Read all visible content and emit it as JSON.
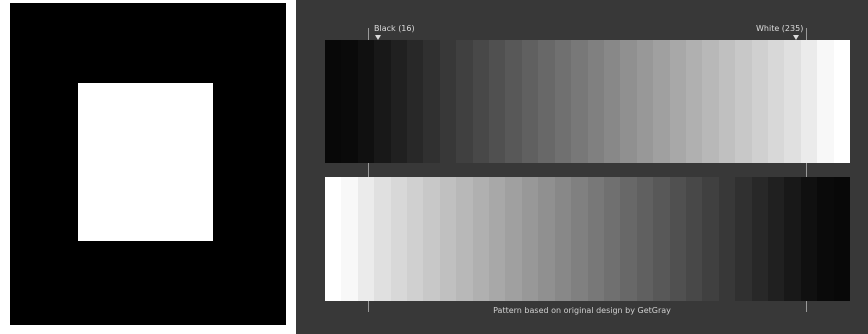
{
  "left_panel": {
    "background": "#000000",
    "square_color": "#ffffff"
  },
  "right_panel": {
    "background": "#383838",
    "markers": {
      "black_label": "Black (16)",
      "white_label": "White (235)"
    },
    "caption": "Pattern based on original design by GetGray",
    "top_ramp_levels": [
      8,
      10,
      16,
      24,
      32,
      40,
      48,
      56,
      64,
      72,
      80,
      88,
      96,
      104,
      112,
      120,
      128,
      136,
      144,
      152,
      160,
      168,
      176,
      184,
      192,
      200,
      208,
      216,
      224,
      235,
      248,
      255
    ],
    "bottom_ramp_levels": [
      255,
      248,
      235,
      224,
      216,
      208,
      200,
      192,
      184,
      176,
      168,
      160,
      152,
      144,
      136,
      128,
      120,
      112,
      104,
      96,
      88,
      80,
      72,
      64,
      56,
      48,
      40,
      32,
      24,
      16,
      10,
      8
    ]
  }
}
